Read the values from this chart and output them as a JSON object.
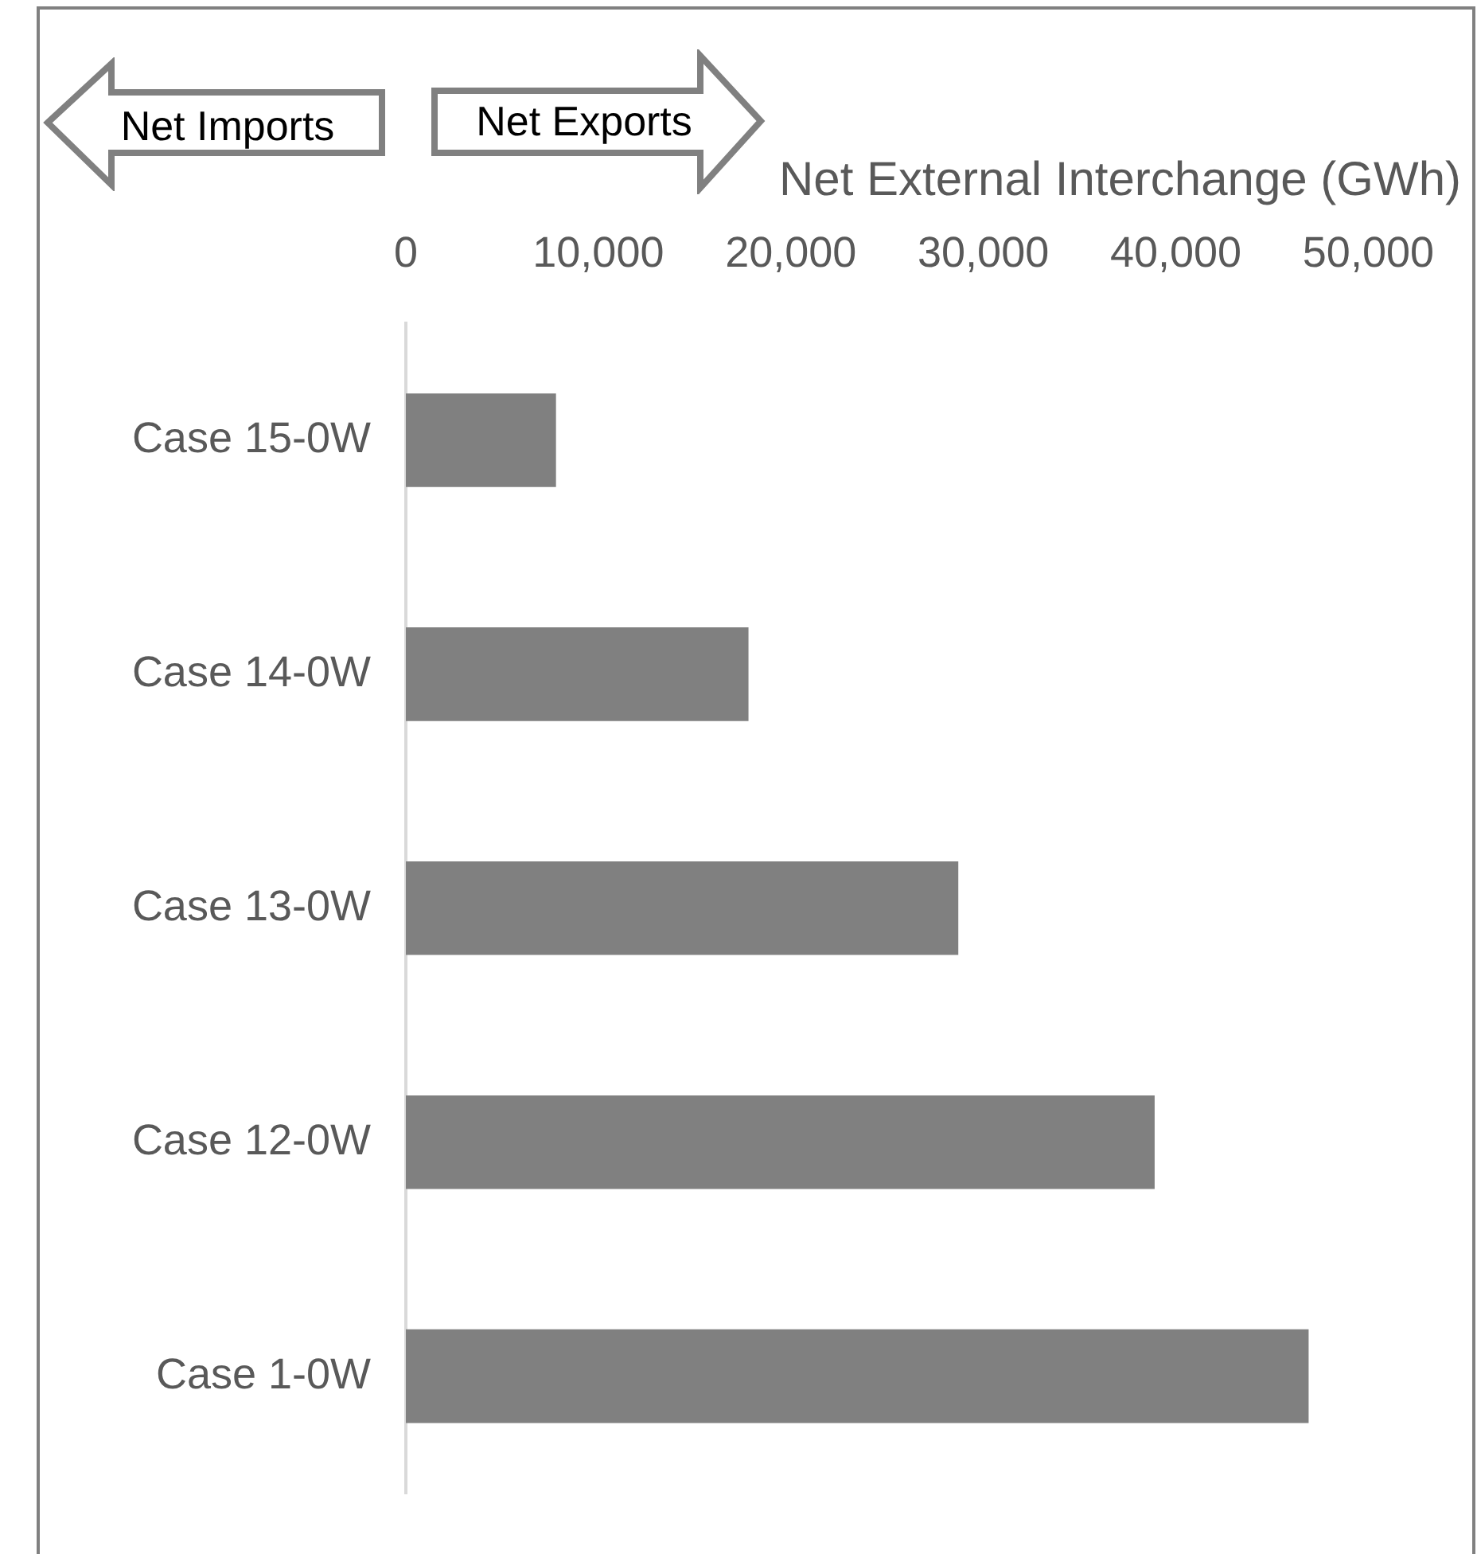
{
  "chart_data": {
    "type": "bar",
    "orientation": "horizontal",
    "xlabel": "Net External Interchange (GWh)",
    "categories": [
      "Case 15-0W",
      "Case 14-0W",
      "Case 13-0W",
      "Case 12-0W",
      "Case 1-0W"
    ],
    "values": [
      7800,
      17800,
      28700,
      38900,
      46900
    ],
    "color": "#808080",
    "xlim": [
      0,
      50000
    ],
    "xticks": [
      0,
      {
        "value": 10000,
        "label": "10,000"
      },
      {
        "value": 20000,
        "label": "20,000"
      },
      {
        "value": 30000,
        "label": "30,000"
      },
      {
        "value": 40000,
        "label": "40,000"
      },
      {
        "value": 50000,
        "label": "50,000"
      }
    ],
    "grid": false,
    "annotations": [
      "Net Imports",
      "Net Exports"
    ]
  }
}
